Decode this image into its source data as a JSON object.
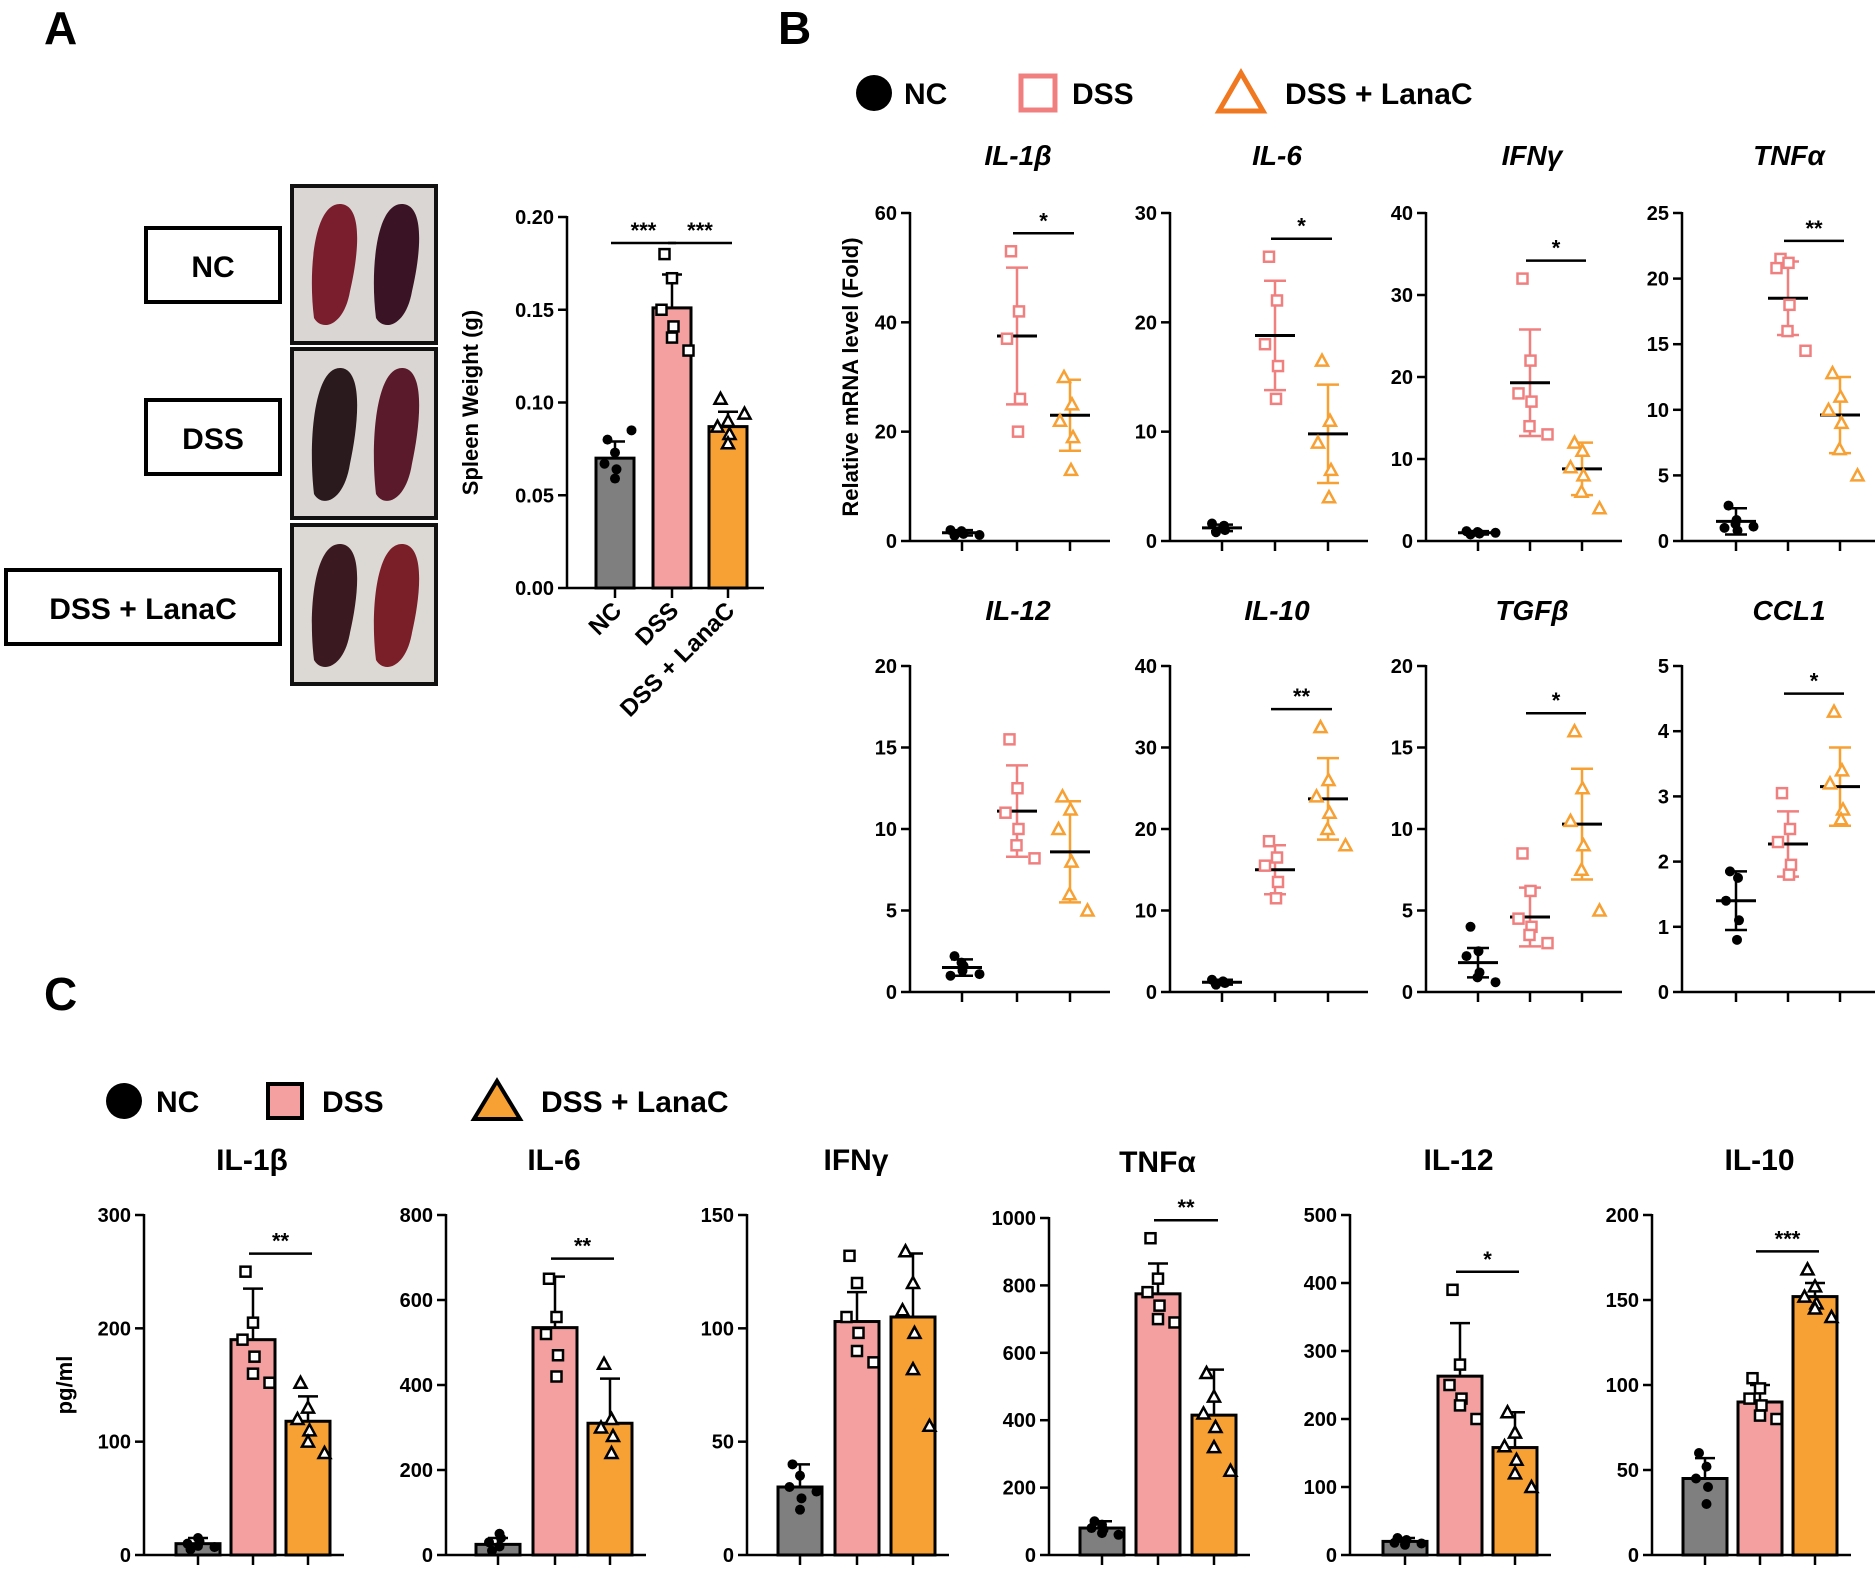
{
  "panels": {
    "A": "A",
    "B": "B",
    "C": "C"
  },
  "colors": {
    "nc": "#000000",
    "nc_bar": "#7f7f7f",
    "dss": "#f08080",
    "dss_bar": "#f4a0a0",
    "lanac": "#f7a134",
    "lanac_bar": "#f7a134"
  },
  "legend": {
    "nc": "NC",
    "dss": "DSS",
    "lanac": "DSS + LanaC"
  },
  "photo": {
    "labels": [
      "NC",
      "DSS",
      "DSS + LanaC"
    ],
    "tissue_colors": [
      [
        "#7a1e2e",
        "#3a1424"
      ],
      [
        "#2a1a1e",
        "#5a1a2c"
      ],
      [
        "#3a1a20",
        "#7a1e28"
      ]
    ]
  },
  "chart_data": [
    {
      "id": "A-spleen",
      "type": "bar",
      "title": "",
      "xlabel": "",
      "ylabel": "Spleen Weight (g)",
      "ylim": [
        0,
        0.2
      ],
      "yticks": [
        "0.00",
        "0.05",
        "0.10",
        "0.15",
        "0.20"
      ],
      "categories": [
        "NC",
        "DSS",
        "DSS + LanaC"
      ],
      "means": [
        0.07,
        0.151,
        0.087
      ],
      "sd": [
        0.009,
        0.018,
        0.008
      ],
      "points": [
        [
          0.08,
          0.073,
          0.067,
          0.064,
          0.059,
          0.085
        ],
        [
          0.18,
          0.167,
          0.15,
          0.141,
          0.135,
          0.128
        ],
        [
          0.102,
          0.09,
          0.087,
          0.083,
          0.078,
          0.094
        ]
      ],
      "significance": [
        {
          "from": 0,
          "to": 1,
          "label": "***"
        },
        {
          "from": 1,
          "to": 2,
          "label": "***"
        }
      ]
    },
    {
      "id": "B-IL-1b",
      "type": "scatter",
      "title": "IL-1β",
      "ylabel": "Relative mRNA level (Fold)",
      "ylim": [
        0,
        60
      ],
      "yticks": [
        "0",
        "20",
        "40",
        "60"
      ],
      "means": [
        1.5,
        37.5,
        23
      ],
      "sd": [
        0.5,
        12.5,
        6.5
      ],
      "points": [
        [
          1.0,
          1.5,
          2.0,
          1.3,
          1.8,
          1.1
        ],
        [
          53,
          42,
          37,
          26,
          20
        ],
        [
          30,
          25,
          22,
          19,
          13
        ]
      ],
      "significance": [
        {
          "from": 1,
          "to": 2,
          "label": "*"
        }
      ]
    },
    {
      "id": "B-IL-6",
      "type": "scatter",
      "title": "IL-6",
      "ylabel": "",
      "ylim": [
        0,
        30
      ],
      "yticks": [
        "0",
        "10",
        "20",
        "30"
      ],
      "means": [
        1.2,
        18.8,
        9.8
      ],
      "sd": [
        0.3,
        5,
        4.5
      ],
      "points": [
        [
          0.8,
          1.4,
          1.6,
          1.0,
          1.2
        ],
        [
          26,
          22,
          18,
          16,
          13
        ],
        [
          16.5,
          11,
          9,
          6.5,
          4
        ]
      ],
      "significance": [
        {
          "from": 1,
          "to": 2,
          "label": "*"
        }
      ]
    },
    {
      "id": "B-IFNy",
      "type": "scatter",
      "title": "IFNγ",
      "ylabel": "",
      "ylim": [
        0,
        40
      ],
      "yticks": [
        "0",
        "10",
        "20",
        "30",
        "40"
      ],
      "means": [
        1.0,
        19.3,
        8.8
      ],
      "sd": [
        0.2,
        6.5,
        3.2
      ],
      "points": [
        [
          0.8,
          1.0,
          1.2,
          0.9,
          1.1,
          1.0
        ],
        [
          32,
          22,
          18,
          17,
          14,
          13
        ],
        [
          12,
          11,
          9,
          8,
          6,
          4
        ]
      ],
      "significance": [
        {
          "from": 1,
          "to": 2,
          "label": "*"
        }
      ]
    },
    {
      "id": "B-TNFa",
      "type": "scatter",
      "title": "TNFα",
      "ylabel": "",
      "ylim": [
        0,
        25
      ],
      "yticks": [
        "0",
        "5",
        "10",
        "15",
        "20",
        "25"
      ],
      "means": [
        1.5,
        18.5,
        9.6
      ],
      "sd": [
        1,
        2.8,
        2.9
      ],
      "points": [
        [
          2.7,
          1.6,
          1.0,
          0.8,
          1.3,
          1.1
        ],
        [
          21.5,
          21.2,
          20.8,
          18,
          16,
          14.5
        ],
        [
          12.8,
          11,
          10,
          9,
          7,
          5
        ]
      ],
      "significance": [
        {
          "from": 1,
          "to": 2,
          "label": "**"
        }
      ]
    },
    {
      "id": "B-IL-12",
      "type": "scatter",
      "title": "IL-12",
      "ylabel": "",
      "ylim": [
        0,
        20
      ],
      "yticks": [
        "0",
        "5",
        "10",
        "15",
        "20"
      ],
      "means": [
        1.5,
        11.1,
        8.6
      ],
      "sd": [
        0.5,
        2.8,
        3.1
      ],
      "points": [
        [
          2.2,
          1.3,
          1.0,
          1.6,
          1.8,
          1.1
        ],
        [
          15.5,
          12.5,
          11,
          10,
          9,
          8.2
        ],
        [
          12,
          11.2,
          10,
          8,
          6,
          5
        ]
      ],
      "significance": []
    },
    {
      "id": "B-IL-10",
      "type": "scatter",
      "title": "IL-10",
      "ylabel": "",
      "ylim": [
        0,
        40
      ],
      "yticks": [
        "0",
        "10",
        "20",
        "30",
        "40"
      ],
      "means": [
        1.2,
        15.0,
        23.7
      ],
      "sd": [
        0.3,
        3.0,
        5.0
      ],
      "points": [
        [
          0.9,
          1.2,
          1.5,
          1.1,
          1.3
        ],
        [
          18.5,
          16.5,
          15.5,
          13.5,
          11.5
        ],
        [
          32.5,
          26,
          24,
          22,
          20,
          18
        ]
      ],
      "significance": [
        {
          "from": 1,
          "to": 2,
          "label": "**"
        }
      ]
    },
    {
      "id": "B-TGFb",
      "type": "scatter",
      "title": "TGFβ",
      "ylabel": "",
      "ylim": [
        0,
        20
      ],
      "yticks": [
        "0",
        "5",
        "10",
        "15",
        "20"
      ],
      "means": [
        1.8,
        4.6,
        10.3
      ],
      "sd": [
        0.9,
        1.8,
        3.4
      ],
      "points": [
        [
          4.0,
          2.5,
          2.2,
          1.2,
          0.9,
          0.6
        ],
        [
          8.5,
          6.2,
          4.5,
          4.0,
          3.5,
          3.0
        ],
        [
          16,
          12.5,
          10.5,
          9,
          7.5,
          5
        ]
      ],
      "significance": [
        {
          "from": 1,
          "to": 2,
          "label": "*"
        }
      ]
    },
    {
      "id": "B-CCL1",
      "type": "scatter",
      "title": "CCL1",
      "ylabel": "",
      "ylim": [
        0,
        5
      ],
      "yticks": [
        "0",
        "1",
        "2",
        "3",
        "4",
        "5"
      ],
      "means": [
        1.4,
        2.27,
        3.15
      ],
      "sd": [
        0.45,
        0.5,
        0.6
      ],
      "points": [
        [
          1.85,
          1.75,
          1.4,
          1.1,
          0.8
        ],
        [
          3.05,
          2.5,
          2.3,
          1.95,
          1.8
        ],
        [
          4.3,
          3.4,
          3.2,
          2.8,
          2.65
        ]
      ],
      "significance": [
        {
          "from": 1,
          "to": 2,
          "label": "*"
        }
      ]
    },
    {
      "id": "C-IL-1b",
      "type": "bar",
      "title": "IL-1β",
      "ylabel": "pg/ml",
      "ylim": [
        0,
        300
      ],
      "yticks": [
        "0",
        "100",
        "200",
        "300"
      ],
      "means": [
        10,
        190,
        118
      ],
      "sd": [
        5,
        45,
        22
      ],
      "points": [
        [
          5,
          8,
          10,
          12,
          15,
          7
        ],
        [
          250,
          205,
          190,
          175,
          160,
          152
        ],
        [
          152,
          130,
          120,
          110,
          100,
          90
        ]
      ],
      "significance": [
        {
          "from": 1,
          "to": 2,
          "label": "**"
        }
      ]
    },
    {
      "id": "C-IL-6",
      "type": "bar",
      "title": "IL-6",
      "ylabel": "",
      "ylim": [
        0,
        800
      ],
      "yticks": [
        "0",
        "200",
        "400",
        "600",
        "800"
      ],
      "means": [
        25,
        535,
        310
      ],
      "sd": [
        15,
        120,
        105
      ],
      "points": [
        [
          10,
          20,
          30,
          40,
          50
        ],
        [
          650,
          560,
          520,
          470,
          420
        ],
        [
          450,
          320,
          300,
          280,
          240
        ]
      ],
      "significance": [
        {
          "from": 1,
          "to": 2,
          "label": "**"
        }
      ]
    },
    {
      "id": "C-IFNy",
      "type": "bar",
      "title": "IFNγ",
      "ylabel": "",
      "ylim": [
        0,
        150
      ],
      "yticks": [
        "0",
        "50",
        "100",
        "150"
      ],
      "means": [
        30,
        103,
        105
      ],
      "sd": [
        10,
        13,
        28
      ],
      "points": [
        [
          40,
          35,
          30,
          25,
          20,
          28
        ],
        [
          132,
          120,
          105,
          98,
          90,
          85
        ],
        [
          134,
          120,
          108,
          98,
          82,
          57
        ]
      ],
      "significance": []
    },
    {
      "id": "C-TNFa",
      "type": "bar",
      "title": "TNFα",
      "ylabel": "",
      "ylim": [
        0,
        1000
      ],
      "yticks": [
        "0",
        "200",
        "400",
        "600",
        "800",
        "1000"
      ],
      "means": [
        80,
        775,
        415
      ],
      "sd": [
        20,
        90,
        135
      ],
      "points": [
        [
          100,
          90,
          80,
          75,
          65,
          60
        ],
        [
          940,
          820,
          780,
          740,
          700,
          690
        ],
        [
          540,
          470,
          420,
          380,
          320,
          250
        ]
      ],
      "significance": [
        {
          "from": 1,
          "to": 2,
          "label": "**"
        }
      ]
    },
    {
      "id": "C-IL-12",
      "type": "bar",
      "title": "IL-12",
      "ylabel": "",
      "ylim": [
        0,
        500
      ],
      "yticks": [
        "0",
        "100",
        "200",
        "300",
        "400",
        "500"
      ],
      "means": [
        20,
        263,
        158
      ],
      "sd": [
        5,
        78,
        52
      ],
      "points": [
        [
          25,
          20,
          18,
          22,
          15,
          17
        ],
        [
          390,
          280,
          250,
          230,
          220,
          200
        ],
        [
          210,
          180,
          160,
          140,
          120,
          100
        ]
      ],
      "significance": [
        {
          "from": 1,
          "to": 2,
          "label": "*"
        }
      ]
    },
    {
      "id": "C-IL-10",
      "type": "bar",
      "title": "IL-10",
      "ylabel": "",
      "ylim": [
        0,
        200
      ],
      "yticks": [
        "0",
        "50",
        "100",
        "150",
        "200"
      ],
      "means": [
        45,
        90,
        152
      ],
      "sd": [
        12,
        10,
        8
      ],
      "points": [
        [
          60,
          52,
          45,
          40,
          30
        ],
        [
          104,
          98,
          92,
          88,
          82,
          80
        ],
        [
          168,
          158,
          152,
          148,
          145,
          140
        ]
      ],
      "significance": [
        {
          "from": 1,
          "to": 2,
          "label": "***"
        }
      ]
    }
  ]
}
